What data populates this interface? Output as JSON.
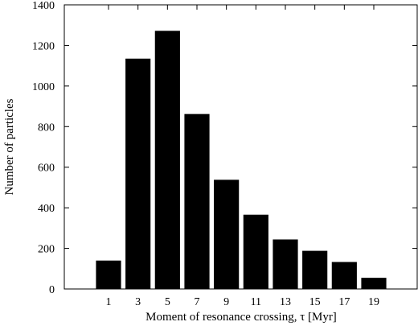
{
  "chart_data": {
    "type": "bar",
    "categories": [
      "1",
      "3",
      "5",
      "7",
      "9",
      "11",
      "13",
      "15",
      "17",
      "19"
    ],
    "x": [
      1,
      3,
      5,
      7,
      9,
      11,
      13,
      15,
      17,
      19
    ],
    "values": [
      140,
      1135,
      1272,
      862,
      538,
      366,
      244,
      188,
      133,
      55
    ],
    "xlabel": "Moment of resonance crossing, τ [Myr]",
    "ylabel": "Number of particles",
    "xlim": [
      -2,
      22
    ],
    "ylim": [
      0,
      1400
    ],
    "yticks": [
      0,
      200,
      400,
      600,
      800,
      1000,
      1200,
      1400
    ],
    "grid": false,
    "bar_color": "#000000"
  }
}
